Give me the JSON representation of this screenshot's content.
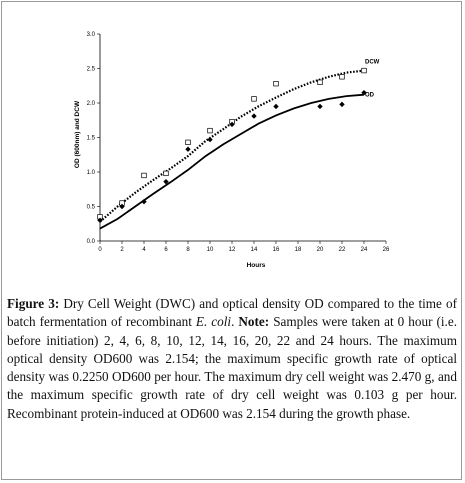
{
  "chart_data": {
    "type": "scatter",
    "xlabel": "Hours",
    "ylabel": "OD (600nm) and DCW",
    "xlim": [
      0,
      26
    ],
    "ylim": [
      0.0,
      3.0
    ],
    "xticks": [
      "0",
      "2",
      "4",
      "6",
      "8",
      "10",
      "12",
      "14",
      "16",
      "18",
      "20",
      "22",
      "24",
      "26"
    ],
    "yticks": [
      "0.0",
      "0.5",
      "1.0",
      "1.5",
      "2.0",
      "2.5",
      "3.0"
    ],
    "grid": false,
    "series": [
      {
        "name": "DCW",
        "marker": "open-square",
        "line": "dotted",
        "color": "#000000",
        "x": [
          0,
          2,
          4,
          6,
          8,
          10,
          12,
          14,
          16,
          20,
          22,
          24
        ],
        "y": [
          0.35,
          0.55,
          0.95,
          0.98,
          1.43,
          1.6,
          1.73,
          2.06,
          2.28,
          2.3,
          2.38,
          2.47
        ],
        "fit": [
          0.28,
          0.5,
          0.7,
          0.88,
          1.05,
          1.23,
          1.45,
          1.62,
          1.8,
          1.95,
          2.08,
          2.2,
          2.3,
          2.38,
          2.44,
          2.47
        ]
      },
      {
        "name": "OD",
        "marker": "filled-diamond",
        "line": "solid",
        "color": "#000000",
        "x": [
          0,
          2,
          4,
          6,
          8,
          10,
          12,
          14,
          16,
          20,
          22,
          24
        ],
        "y": [
          0.3,
          0.5,
          0.57,
          0.86,
          1.33,
          1.47,
          1.69,
          1.81,
          1.95,
          1.95,
          1.98,
          2.15
        ],
        "fit": [
          0.18,
          0.32,
          0.5,
          0.68,
          0.85,
          1.03,
          1.23,
          1.4,
          1.55,
          1.7,
          1.82,
          1.92,
          2.0,
          2.06,
          2.1,
          2.12
        ]
      }
    ],
    "fit_x": [
      0,
      1.6,
      3.2,
      4.8,
      6.4,
      8,
      9.6,
      11.2,
      12.8,
      14.4,
      16,
      17.6,
      19.2,
      20.8,
      22.4,
      24
    ]
  },
  "caption": {
    "label": "Figure 3:",
    "text1": " Dry Cell Weight (DWC) and optical density OD compared to the time of batch fermentation of recombinant ",
    "organism": "E. coli",
    "text2": ". ",
    "note_label": "Note:",
    "text3": " Samples were taken at 0 hour (i.e. before initiation) 2, 4, 6, 8, 10, 12, 14, 16, 20, 22 and 24 hours. The maximum optical density OD600 was 2.154; the maximum specific growth rate of optical density was 0.2250 OD600 per hour. The maximum dry cell weight was 2.470 g, and the maximum specific growth rate of dry cell weight was 0.103 g per hour. Recombinant protein-induced at OD600 was 2.154 during the growth phase."
  }
}
